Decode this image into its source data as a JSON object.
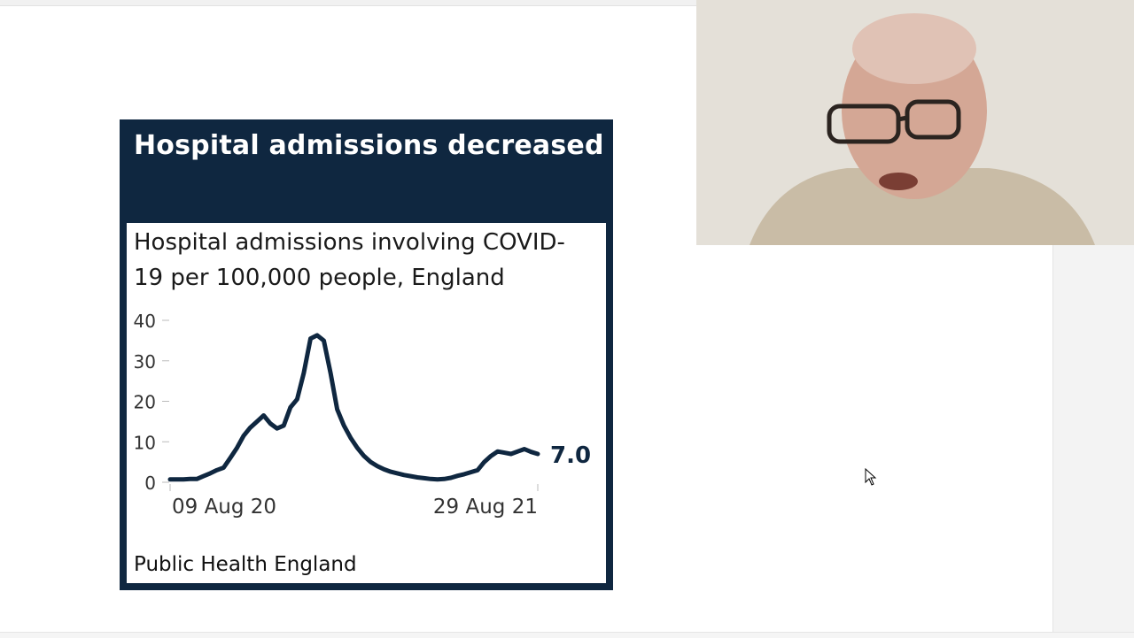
{
  "slide": {
    "card_title": "Hospital admissions decreased",
    "chart_title": "Hospital admissions involving COVID-19 per 100,000 people, England",
    "source": "Public Health England"
  },
  "colors": {
    "navy": "#0f2740",
    "line": "#0f2740"
  },
  "webcam": {
    "icon": "presenter-video"
  },
  "chart_data": {
    "type": "line",
    "title": "Hospital admissions involving COVID-19 per 100,000 people, England",
    "xlabel": "",
    "ylabel": "",
    "ylim": [
      0,
      40
    ],
    "yticks": [
      0,
      10,
      20,
      30,
      40
    ],
    "xtick_labels": [
      "09 Aug 20",
      "29 Aug 21"
    ],
    "grid": false,
    "end_label": "7.0",
    "x": [
      "2020-08-09",
      "2020-08-16",
      "2020-08-23",
      "2020-08-30",
      "2020-09-06",
      "2020-09-13",
      "2020-09-20",
      "2020-09-27",
      "2020-10-04",
      "2020-10-11",
      "2020-10-18",
      "2020-10-25",
      "2020-11-01",
      "2020-11-08",
      "2020-11-15",
      "2020-11-22",
      "2020-11-29",
      "2020-12-06",
      "2020-12-13",
      "2020-12-20",
      "2020-12-27",
      "2021-01-03",
      "2021-01-10",
      "2021-01-17",
      "2021-01-24",
      "2021-01-31",
      "2021-02-07",
      "2021-02-14",
      "2021-02-21",
      "2021-02-28",
      "2021-03-07",
      "2021-03-14",
      "2021-03-21",
      "2021-03-28",
      "2021-04-04",
      "2021-04-11",
      "2021-04-18",
      "2021-04-25",
      "2021-05-02",
      "2021-05-09",
      "2021-05-16",
      "2021-05-23",
      "2021-05-30",
      "2021-06-06",
      "2021-06-13",
      "2021-06-20",
      "2021-06-27",
      "2021-07-04",
      "2021-07-11",
      "2021-07-18",
      "2021-07-25",
      "2021-08-01",
      "2021-08-08",
      "2021-08-15",
      "2021-08-22",
      "2021-08-29"
    ],
    "values": [
      0.7,
      0.7,
      0.7,
      0.8,
      0.8,
      1.5,
      2.2,
      3.0,
      3.6,
      6,
      8.5,
      11.5,
      13.5,
      15,
      16.5,
      14.5,
      13.3,
      14,
      18.5,
      20.5,
      27,
      35.5,
      36.3,
      35,
      27,
      18,
      14,
      11,
      8.5,
      6.5,
      5,
      4,
      3.2,
      2.6,
      2.2,
      1.8,
      1.5,
      1.2,
      1,
      0.8,
      0.7,
      0.8,
      1.1,
      1.6,
      2,
      2.5,
      3,
      5,
      6.5,
      7.6,
      7.3,
      7,
      7.6,
      8.2,
      7.5,
      7.0
    ]
  }
}
